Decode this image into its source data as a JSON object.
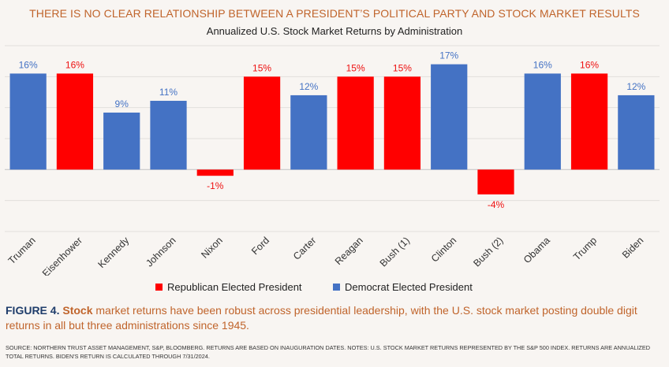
{
  "headline": "THERE IS NO CLEAR RELATIONSHIP BETWEEN A PRESIDENT’S POLITICAL PARTY AND STOCK MARKET RESULTS",
  "colors": {
    "republican": "#ff0000",
    "democrat": "#4472c4",
    "republican_label": "#ee1111",
    "democrat_label": "#4472c4",
    "headline": "#c0642b",
    "caption": "#c0642b",
    "caption_lead": "#1f3d6b",
    "background": "#f8f5f2"
  },
  "legend": {
    "republican": "Republican Elected President",
    "democrat": "Democrat Elected President"
  },
  "caption": {
    "lead": "FIGURE 4.",
    "emphasis": "Stock",
    "text": "market returns have been robust across presidential leadership, with the U.S. stock market posting double digit returns in all but three administrations since 1945."
  },
  "source": "SOURCE: NORTHERN TRUST ASSET MANAGEMENT, S&P, BLOOMBERG. RETURNS ARE BASED ON INAUGURATION DATES. NOTES: U.S. STOCK MARKET RETURNS REPRESENTED BY THE S&P 500 INDEX. RETURNS ARE ANNUALIZED TOTAL RETURNS.  BIDEN'S RETURN IS CALCULATED THROUGH 7/31/2024.",
  "chart_data": {
    "type": "bar",
    "title": "Annualized U.S. Stock Market Returns by Administration",
    "xlabel": "",
    "ylabel": "",
    "ylim": [
      -10,
      20
    ],
    "grid": true,
    "legend_position": "bottom",
    "categories": [
      "Truman",
      "Eisenhower",
      "Kennedy",
      "Johnson",
      "Nixon",
      "Ford",
      "Carter",
      "Reagan",
      "Bush (1)",
      "Clinton",
      "Bush (2)",
      "Obama",
      "Trump",
      "Biden"
    ],
    "values": [
      15.5,
      15.5,
      9.2,
      11.1,
      -1,
      15,
      12,
      15,
      15,
      17,
      -4,
      15.5,
      15.5,
      12
    ],
    "labels": [
      "16%",
      "16%",
      "9%",
      "11%",
      "-1%",
      "15%",
      "12%",
      "15%",
      "15%",
      "17%",
      "-4%",
      "16%",
      "16%",
      "12%"
    ],
    "party": [
      "democrat",
      "republican",
      "democrat",
      "democrat",
      "republican",
      "republican",
      "democrat",
      "republican",
      "republican",
      "democrat",
      "republican",
      "democrat",
      "republican",
      "democrat"
    ]
  }
}
